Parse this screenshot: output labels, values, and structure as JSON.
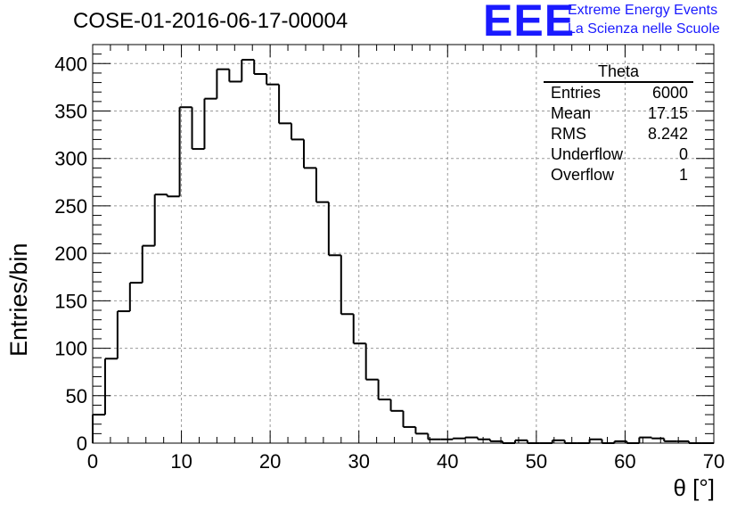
{
  "header": {
    "run_title": "COSE-01-2016-06-17-00004",
    "logo_letters": "EEE",
    "logo_line1": "Extreme Energy Events",
    "logo_line2": "La Scienza nelle Scuole"
  },
  "stats_box": {
    "name": "Theta",
    "rows": [
      {
        "label": "Entries",
        "value": "6000"
      },
      {
        "label": "Mean",
        "value": "17.15"
      },
      {
        "label": "RMS",
        "value": "8.242"
      },
      {
        "label": "Underflow",
        "value": "0"
      },
      {
        "label": "Overflow",
        "value": "1"
      }
    ]
  },
  "chart_data": {
    "type": "bar",
    "style": "step-histogram",
    "title": "COSE-01-2016-06-17-00004",
    "xlabel": "θ [°]",
    "ylabel": "Entries/bin",
    "xlim": [
      0,
      70
    ],
    "ylim": [
      0,
      420
    ],
    "bin_width": 1.4,
    "x_ticks": [
      0,
      10,
      20,
      30,
      40,
      50,
      60,
      70
    ],
    "y_ticks": [
      0,
      50,
      100,
      150,
      200,
      250,
      300,
      350,
      400
    ],
    "grid": true,
    "values": [
      30,
      89,
      139,
      169,
      208,
      262,
      260,
      354,
      310,
      363,
      394,
      381,
      404,
      389,
      378,
      337,
      320,
      290,
      254,
      198,
      136,
      105,
      67,
      46,
      34,
      17,
      10,
      4,
      4,
      5,
      6,
      4,
      2,
      0,
      3,
      0,
      0,
      3,
      0,
      0,
      4,
      0,
      2,
      0,
      6,
      5,
      2,
      2,
      0,
      0
    ],
    "colors": {
      "line": "#000000",
      "grid": "#9a9a9a",
      "logo": "#1a1aff"
    }
  }
}
